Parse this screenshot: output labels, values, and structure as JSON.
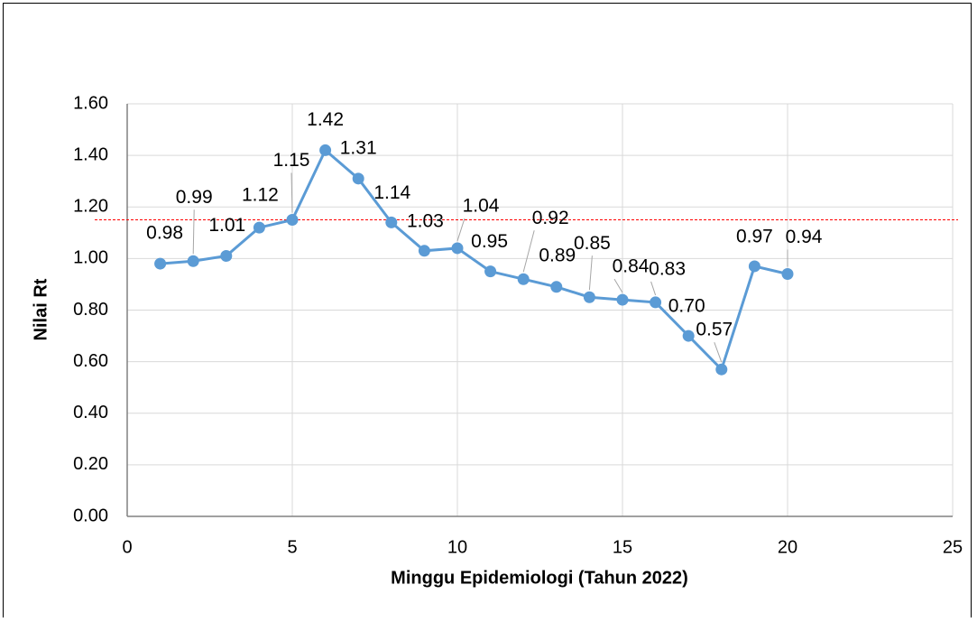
{
  "chart_data": {
    "type": "line",
    "x_label": "Minggu Epidemiologi (Tahun 2022)",
    "y_label": "Nilai Rt",
    "series": [
      {
        "name": "Nilai Rt",
        "color": "#5b9bd5",
        "x": [
          1,
          2,
          3,
          4,
          5,
          6,
          7,
          8,
          9,
          10,
          11,
          12,
          13,
          14,
          15,
          16,
          17,
          18,
          19,
          20
        ],
        "values": [
          0.98,
          0.99,
          1.01,
          1.12,
          1.15,
          1.42,
          1.31,
          1.14,
          1.03,
          1.04,
          0.95,
          0.92,
          0.89,
          0.85,
          0.84,
          0.83,
          0.7,
          0.57,
          0.97,
          0.94
        ],
        "value_labels": [
          "0.98",
          "0.99",
          "1.01",
          "1.12",
          "1.15",
          "1.42",
          "1.31",
          "1.14",
          "1.03",
          "1.04",
          "0.95",
          "0.92",
          "0.89",
          "0.85",
          "0.84",
          "0.83",
          "0.70",
          "0.57",
          "0.97",
          "0.94"
        ]
      }
    ],
    "reference_line": {
      "value": 1.15,
      "color": "#ff0000"
    },
    "xlim": [
      0,
      25
    ],
    "xticks": [
      0,
      5,
      10,
      15,
      20,
      25
    ],
    "ylim": [
      0,
      1.6
    ],
    "yticks": [
      {
        "value": 0,
        "label": "0.00"
      },
      {
        "value": 0.2,
        "label": "0.20"
      },
      {
        "value": 0.4,
        "label": "0.40"
      },
      {
        "value": 0.6,
        "label": "0.60"
      },
      {
        "value": 0.8,
        "label": "0.80"
      },
      {
        "value": 1.0,
        "label": "1.00"
      },
      {
        "value": 1.2,
        "label": "1.20"
      },
      {
        "value": 1.4,
        "label": "1.40"
      },
      {
        "value": 1.6,
        "label": "1.60"
      }
    ],
    "grid": true
  }
}
